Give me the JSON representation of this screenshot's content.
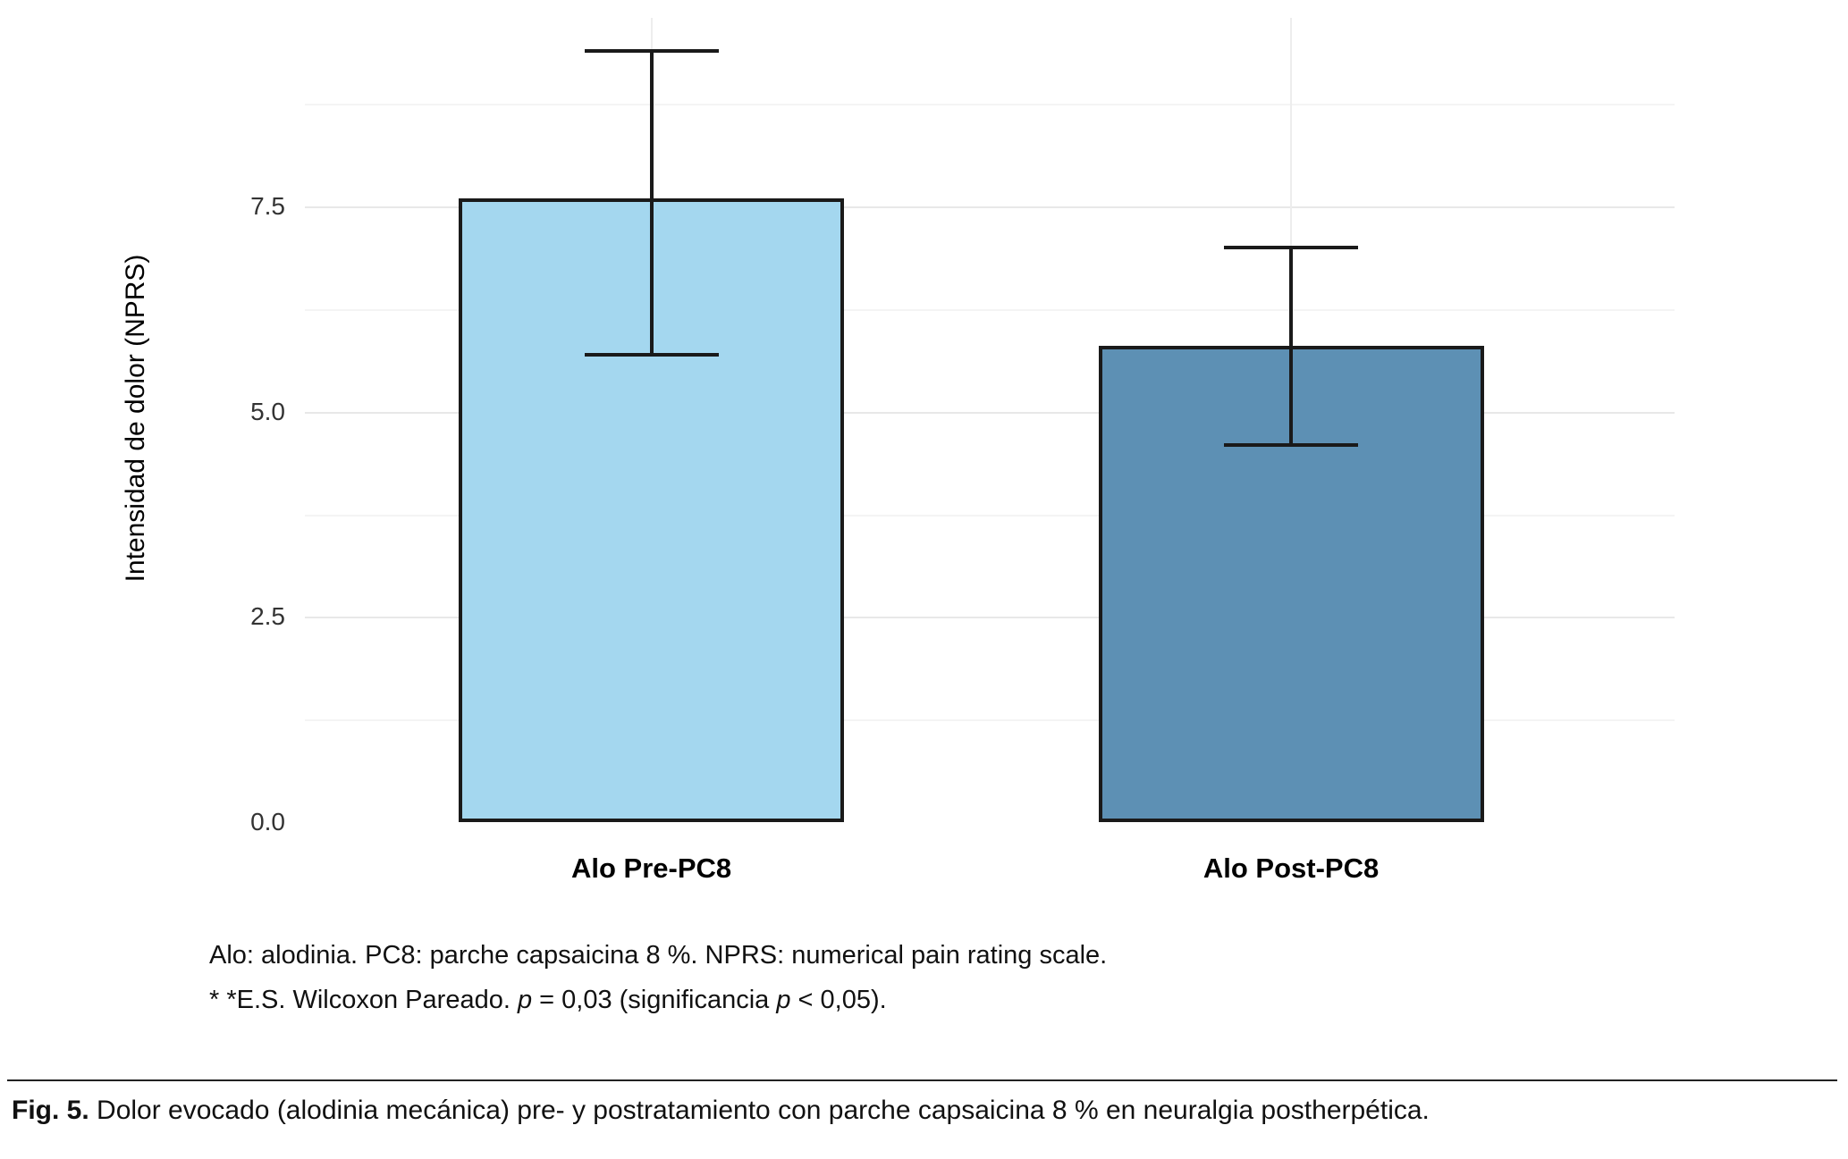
{
  "chart_data": {
    "type": "bar",
    "title": "",
    "categories": [
      "Alo Pre-PC8",
      "Alo Post-PC8"
    ],
    "values": [
      7.6,
      5.8
    ],
    "errors": [
      {
        "low": 5.7,
        "high": 9.4
      },
      {
        "low": 4.6,
        "high": 7.0
      }
    ],
    "bar_colors": [
      "#a4d7ef",
      "#5d90b4"
    ],
    "bar_border_color": "#1a1a1a",
    "xlabel": "",
    "ylabel": "Intensidad de dolor (NPRS)",
    "ylim": [
      0,
      9.8
    ],
    "yticks": [
      0,
      2.5,
      5,
      7.5
    ],
    "ytick_labels": [
      "0.0",
      "2.5",
      "5.0",
      "7.5"
    ],
    "grid": "horizontal major and minor gridlines, faint vertical gridline at each category center",
    "legend": "none"
  },
  "notes": {
    "line1": "Alo: alodinia. PC8: parche capsaicina 8 %. NPRS: numerical pain rating scale.",
    "line2_segments": [
      {
        "text": "* *E.S. Wilcoxon Pareado. ",
        "italic": false
      },
      {
        "text": "p",
        "italic": true
      },
      {
        "text": " = 0,03 (significancia ",
        "italic": false
      },
      {
        "text": "p",
        "italic": true
      },
      {
        "text": " < 0,05).",
        "italic": false
      }
    ]
  },
  "figure_caption": {
    "label": "Fig. 5.",
    "text": "Dolor evocado (alodinia mecánica)  pre- y postratamiento con parche capsaicina 8 % en neuralgia postherpética."
  }
}
